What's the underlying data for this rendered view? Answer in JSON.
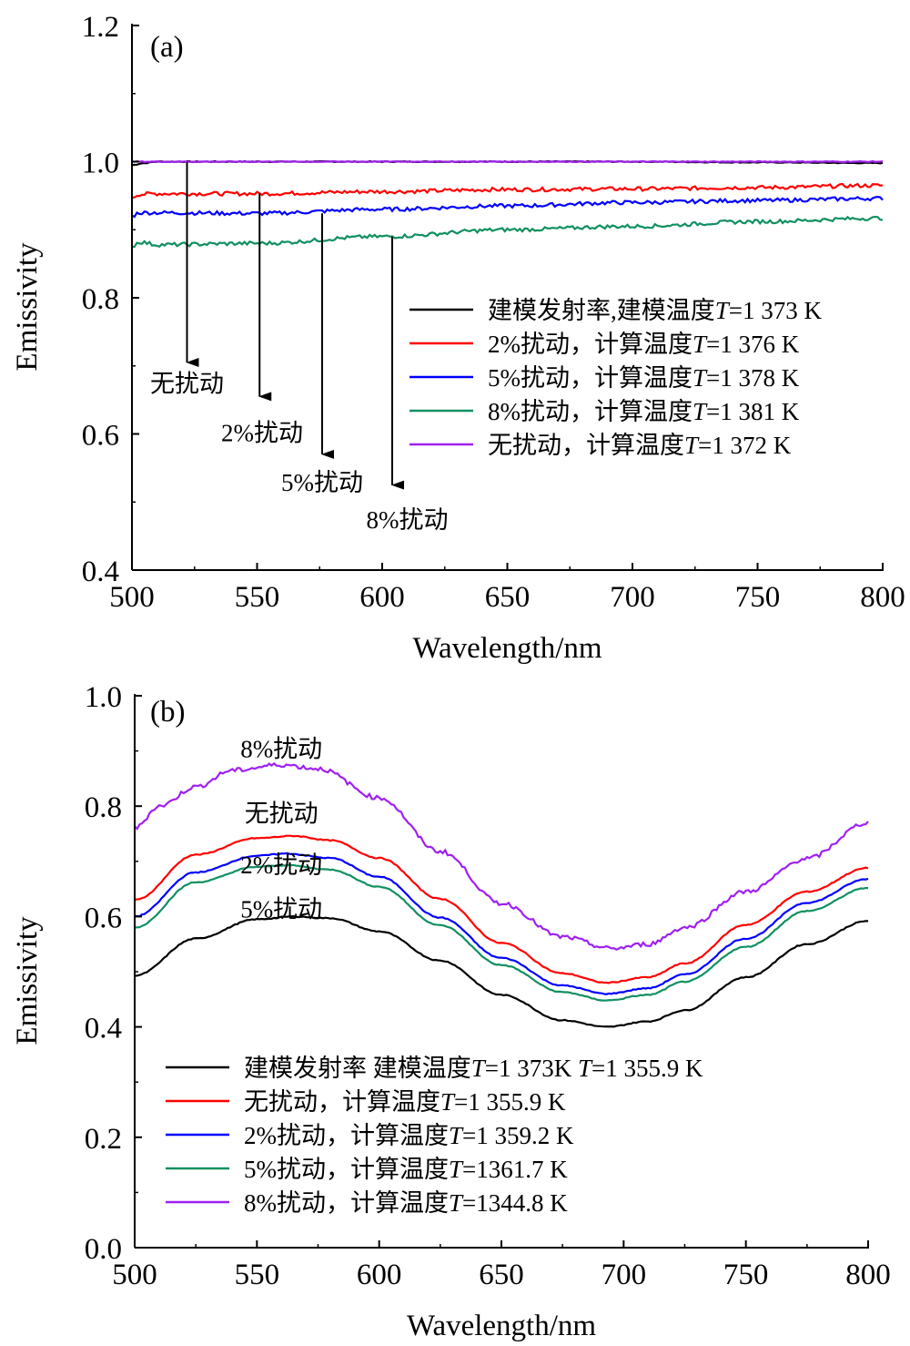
{
  "colors": {
    "black": "#000000",
    "red": "#ff0000",
    "blue": "#0000ff",
    "green": "#109060",
    "purple": "#a020f0"
  },
  "chart_data": [
    {
      "type": "line",
      "panel_label": "(a)",
      "xlabel": "Wavelength/nm",
      "ylabel": "Emissivity",
      "xlim": [
        500,
        800
      ],
      "ylim": [
        0.4,
        1.2
      ],
      "xticks": [
        500,
        550,
        600,
        650,
        700,
        750,
        800
      ],
      "yticks": [
        0.4,
        0.6,
        0.8,
        1.0,
        1.2
      ],
      "xtick_labels": [
        "500",
        "550",
        "600",
        "650",
        "700",
        "750",
        "800"
      ],
      "ytick_labels": [
        "0.4",
        "0.6",
        "0.8",
        "1.0",
        "1.2"
      ],
      "legend_position": "center-right",
      "series": [
        {
          "name": "建模发射率,建模温度T=1 373 K",
          "color_key": "black",
          "x": [
            500,
            505,
            510,
            550,
            600,
            650,
            700,
            750,
            800
          ],
          "y": [
            0.995,
            0.998,
            1.0,
            1.0,
            1.0,
            1.0,
            1.0,
            0.999,
            0.998
          ]
        },
        {
          "name": "2%扰动，计算温度T=1 376 K",
          "color_key": "red",
          "x": [
            500,
            503,
            510,
            550,
            600,
            650,
            700,
            750,
            800
          ],
          "y": [
            0.948,
            0.952,
            0.953,
            0.953,
            0.956,
            0.959,
            0.96,
            0.962,
            0.965
          ]
        },
        {
          "name": "5%扰动，计算温度T=1 378 K",
          "color_key": "blue",
          "x": [
            500,
            503,
            510,
            550,
            600,
            650,
            700,
            750,
            800
          ],
          "y": [
            0.92,
            0.925,
            0.925,
            0.924,
            0.93,
            0.935,
            0.94,
            0.943,
            0.946
          ]
        },
        {
          "name": "8%扰动，计算温度T=1 381 K",
          "color_key": "green",
          "x": [
            500,
            503,
            510,
            550,
            600,
            650,
            700,
            750,
            800
          ],
          "y": [
            0.875,
            0.882,
            0.878,
            0.88,
            0.89,
            0.9,
            0.905,
            0.912,
            0.917
          ]
        },
        {
          "name": "无扰动，计算温度T=1 372 K",
          "color_key": "purple",
          "x": [
            500,
            550,
            600,
            650,
            700,
            750,
            800
          ],
          "y": [
            1.0,
            1.0,
            1.0,
            1.0,
            1.0,
            1.0,
            1.0
          ]
        }
      ],
      "annotations": [
        {
          "text": "无扰动",
          "arrow_x": 522,
          "arrow_from": 0.999,
          "arrow_to": 0.705,
          "label_x": 522,
          "label_y": 0.675
        },
        {
          "text": "2%扰动",
          "arrow_x": 551,
          "arrow_from": 0.953,
          "arrow_to": 0.655,
          "label_x": 552,
          "label_y": 0.603
        },
        {
          "text": "5%扰动",
          "arrow_x": 576,
          "arrow_from": 0.924,
          "arrow_to": 0.57,
          "label_x": 576,
          "label_y": 0.53
        },
        {
          "text": "8%扰动",
          "arrow_x": 604,
          "arrow_from": 0.89,
          "arrow_to": 0.525,
          "label_x": 610,
          "label_y": 0.475
        }
      ]
    },
    {
      "type": "line",
      "panel_label": "(b)",
      "xlabel": "Wavelength/nm",
      "ylabel": "Emissivity",
      "xlim": [
        500,
        800
      ],
      "ylim": [
        0.0,
        1.0
      ],
      "xticks": [
        500,
        550,
        600,
        650,
        700,
        750,
        800
      ],
      "yticks": [
        0.0,
        0.2,
        0.4,
        0.6,
        0.8,
        1.0
      ],
      "xtick_labels": [
        "500",
        "550",
        "600",
        "650",
        "700",
        "750",
        "800"
      ],
      "ytick_labels": [
        "0.0",
        "0.2",
        "0.4",
        "0.6",
        "0.8",
        "1.0"
      ],
      "legend_position": "lower-left",
      "series": [
        {
          "name": "建模发射率 建模温度T=1 373K T=1 355.9 K",
          "color_key": "black",
          "x": [
            500,
            525,
            550,
            565,
            580,
            600,
            625,
            650,
            675,
            693,
            710,
            725,
            750,
            775,
            800
          ],
          "y": [
            0.493,
            0.56,
            0.595,
            0.6,
            0.597,
            0.573,
            0.52,
            0.458,
            0.412,
            0.4,
            0.41,
            0.43,
            0.49,
            0.55,
            0.592
          ]
        },
        {
          "name": "无扰动，计算温度T=1 355.9 K",
          "color_key": "red",
          "x": [
            500,
            525,
            550,
            565,
            580,
            600,
            625,
            650,
            675,
            693,
            710,
            725,
            750,
            775,
            800
          ],
          "y": [
            0.63,
            0.712,
            0.742,
            0.746,
            0.738,
            0.706,
            0.632,
            0.552,
            0.497,
            0.48,
            0.49,
            0.515,
            0.585,
            0.645,
            0.688
          ]
        },
        {
          "name": "2%扰动，计算温度T=1 359.2 K",
          "color_key": "blue",
          "x": [
            500,
            525,
            550,
            562,
            580,
            600,
            625,
            650,
            675,
            693,
            710,
            725,
            750,
            775,
            800
          ],
          "y": [
            0.6,
            0.68,
            0.71,
            0.714,
            0.706,
            0.672,
            0.598,
            0.525,
            0.475,
            0.46,
            0.47,
            0.495,
            0.56,
            0.625,
            0.668
          ]
        },
        {
          "name": "5%扰动，计算温度T=1361.7 K",
          "color_key": "green",
          "x": [
            500,
            525,
            550,
            562,
            580,
            600,
            625,
            650,
            675,
            693,
            710,
            725,
            750,
            775,
            800
          ],
          "y": [
            0.58,
            0.662,
            0.69,
            0.693,
            0.685,
            0.654,
            0.584,
            0.512,
            0.463,
            0.448,
            0.458,
            0.482,
            0.545,
            0.61,
            0.652
          ]
        },
        {
          "name": "8%扰动，计算温度T=1344.8 K",
          "color_key": "purple",
          "x": [
            500,
            510,
            525,
            540,
            560,
            575,
            600,
            625,
            650,
            675,
            695,
            710,
            725,
            750,
            775,
            800
          ],
          "y": [
            0.76,
            0.8,
            0.835,
            0.865,
            0.875,
            0.868,
            0.815,
            0.718,
            0.624,
            0.563,
            0.542,
            0.55,
            0.58,
            0.645,
            0.705,
            0.77
          ]
        }
      ],
      "annotations": [
        {
          "text": "8%扰动",
          "x": 560,
          "y": 0.905
        },
        {
          "text": "无扰动",
          "x": 560,
          "y": 0.788
        },
        {
          "text": "2%扰动",
          "x": 560,
          "y": 0.695
        },
        {
          "text": "5%扰动",
          "x": 560,
          "y": 0.615
        }
      ]
    }
  ]
}
